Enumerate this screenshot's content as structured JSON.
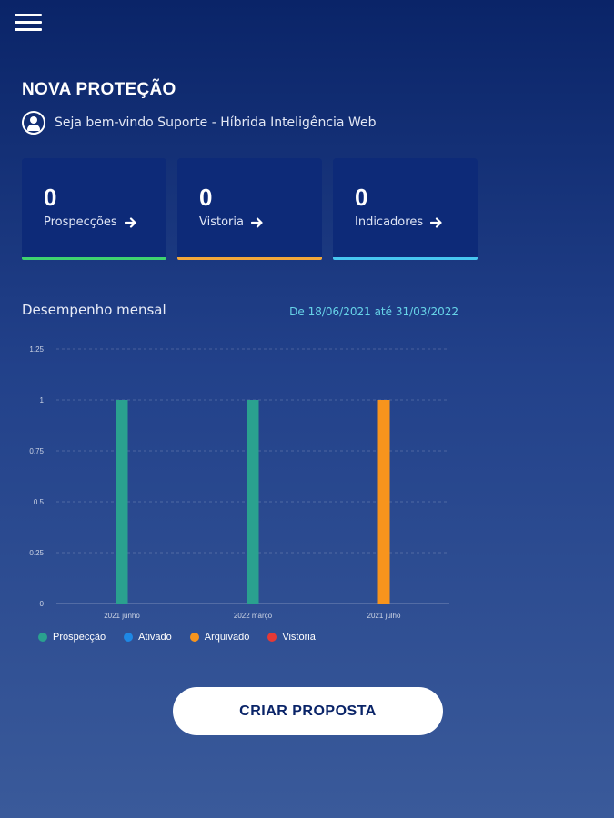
{
  "header": {
    "menu_icon": "hamburger-menu-icon"
  },
  "page": {
    "title": "NOVA PROTEÇÃO",
    "welcome": "Seja bem-vindo Suporte - Híbrida Inteligência Web",
    "user_icon": "user-icon"
  },
  "cards": [
    {
      "value": "0",
      "label": "Prospecções",
      "color": "#3fd36f"
    },
    {
      "value": "0",
      "label": "Vistoria",
      "color": "#f2a83a"
    },
    {
      "value": "0",
      "label": "Indicadores",
      "color": "#47c6f0"
    }
  ],
  "performance": {
    "title": "Desempenho mensal",
    "date_range": "De 18/06/2021 até 31/03/2022"
  },
  "chart_data": {
    "type": "bar",
    "categories": [
      "2021 junho",
      "2022 março",
      "2021 julho"
    ],
    "series": [
      {
        "name": "Prospecção",
        "color": "#2aa18f",
        "values": [
          1,
          1,
          0
        ]
      },
      {
        "name": "Ativado",
        "color": "#1e88e5",
        "values": [
          0,
          0,
          0
        ]
      },
      {
        "name": "Arquivado",
        "color": "#f7941d",
        "values": [
          0,
          0,
          1
        ]
      },
      {
        "name": "Vistoria",
        "color": "#e53935",
        "values": [
          0,
          0,
          0
        ]
      }
    ],
    "yticks": [
      "1.25",
      "1",
      "0.75",
      "0.5",
      "0.25",
      "0"
    ],
    "ylim": [
      0,
      1.25
    ],
    "grid": true,
    "legend": "bottom"
  },
  "cta": {
    "label": "CRIAR PROPOSTA"
  }
}
